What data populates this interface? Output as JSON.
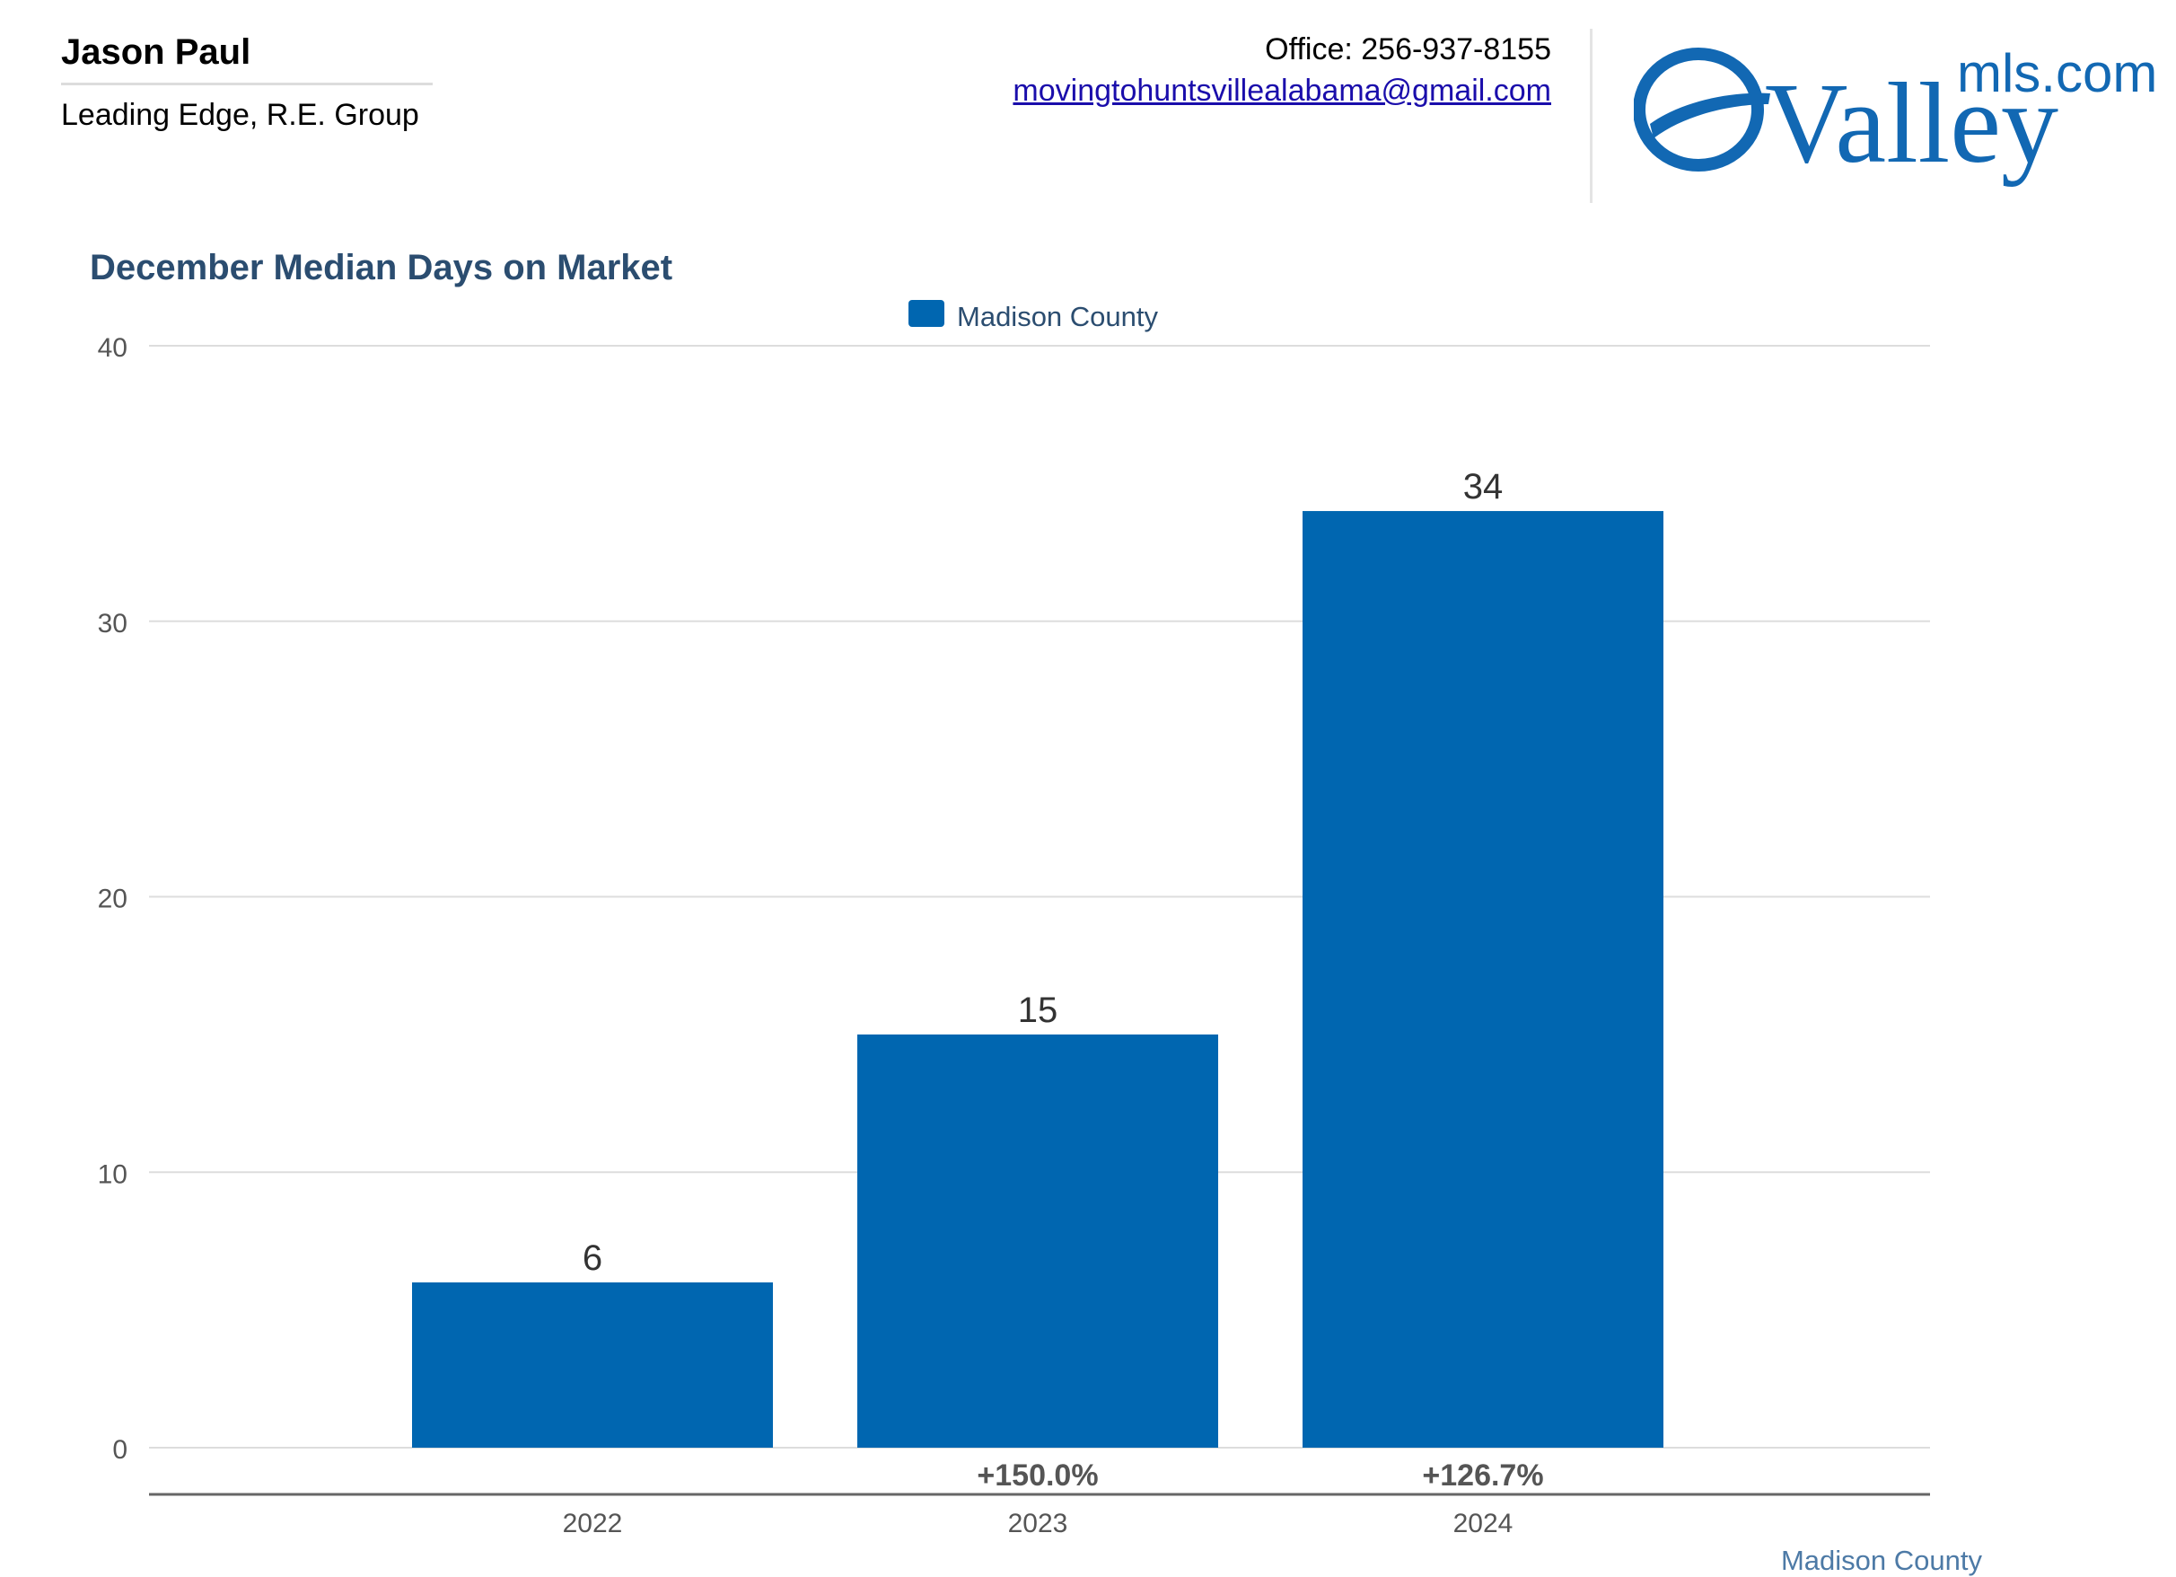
{
  "header": {
    "agent_name": "Jason Paul",
    "agent_company": "Leading Edge, R.E. Group",
    "office": "Office: 256-937-8155",
    "email": "movingtohuntsvillealabama@gmail.com"
  },
  "logo": {
    "main_text": "Valley",
    "sub_text": "mls.com",
    "color": "#1268b3"
  },
  "chart_data": {
    "type": "bar",
    "title": "December Median Days on Market",
    "categories": [
      "2022",
      "2023",
      "2024"
    ],
    "series": [
      {
        "name": "Madison County",
        "values": [
          6,
          15,
          34
        ],
        "color": "#0066b0"
      }
    ],
    "changes": [
      "",
      "+150.0%",
      "+126.7%"
    ],
    "yticks": [
      0,
      10,
      20,
      30,
      40
    ],
    "ylim": [
      0,
      40
    ],
    "grid": true,
    "legend": "top-center",
    "xlabel": "",
    "ylabel": ""
  },
  "footer": {
    "region_label": "Madison County"
  }
}
